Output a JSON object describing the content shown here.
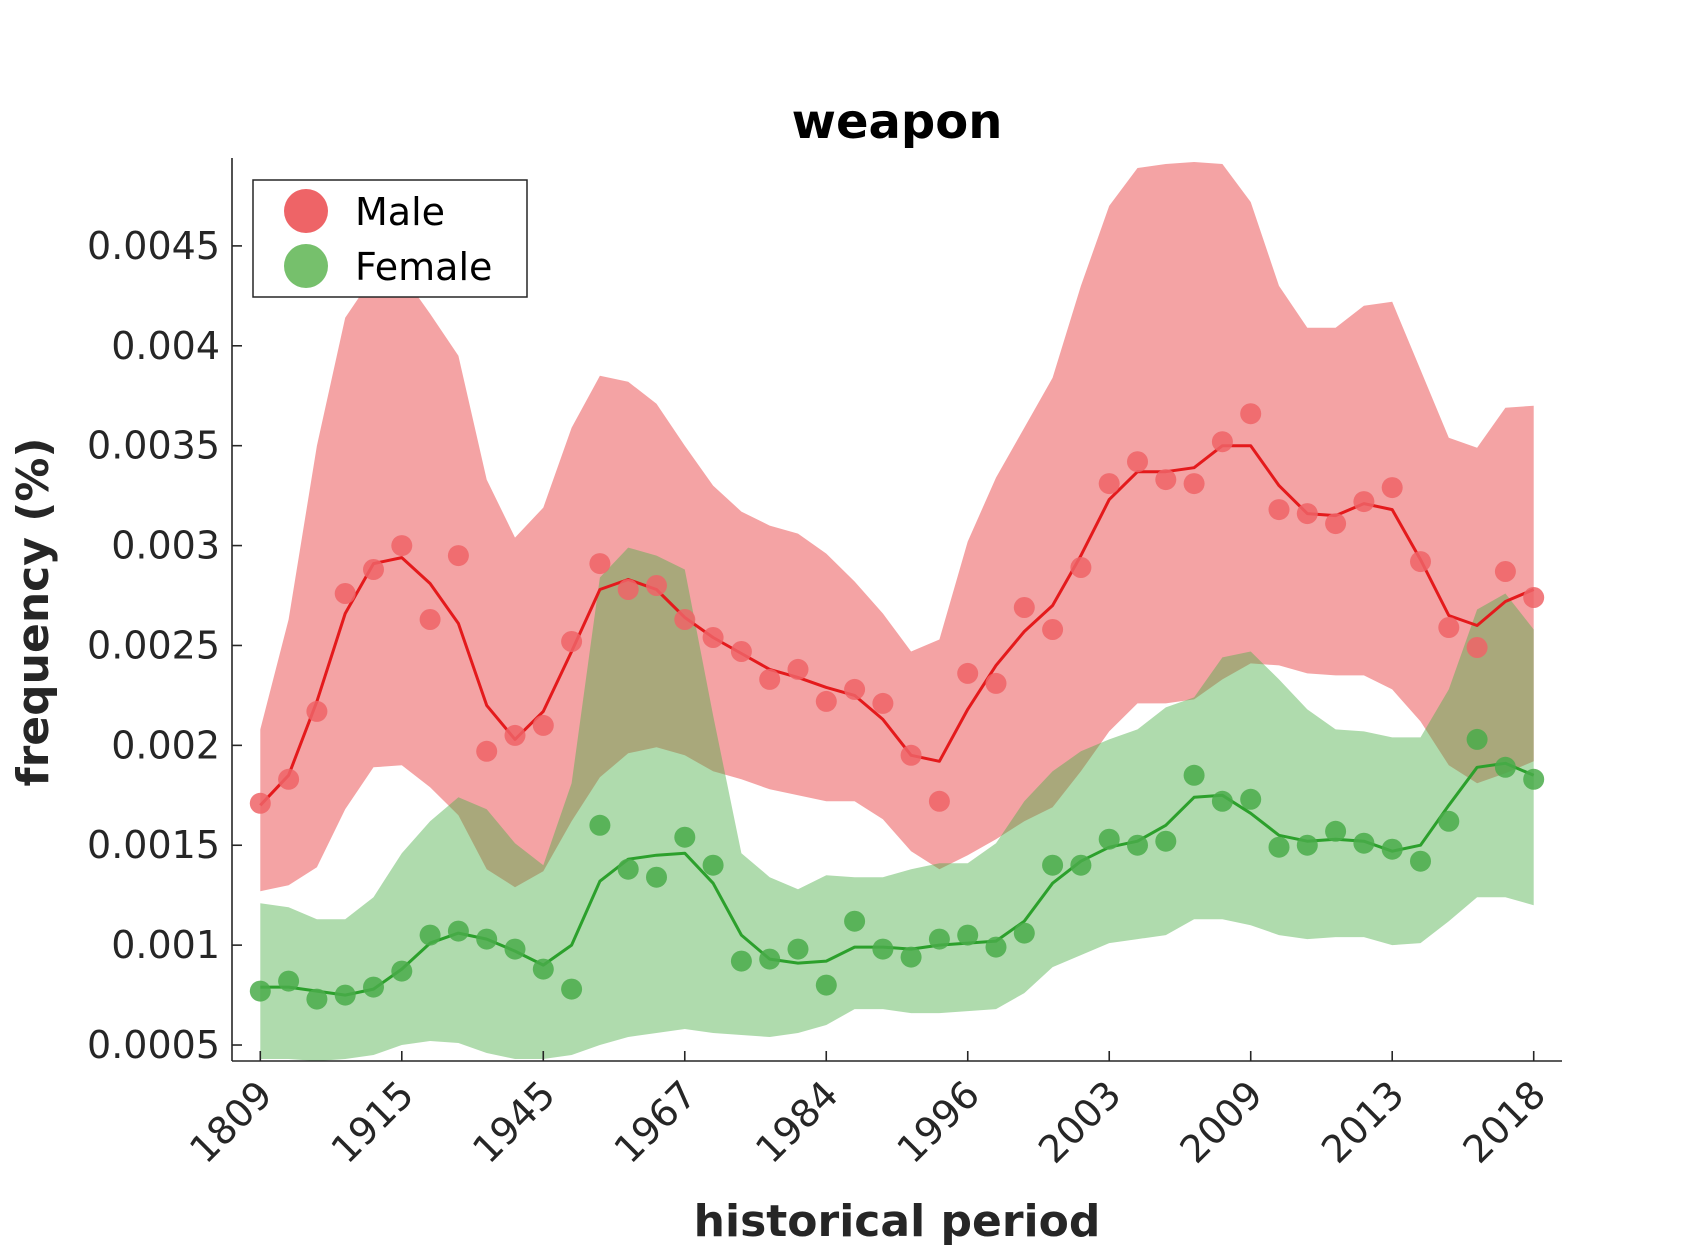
{
  "chart_data": {
    "type": "line",
    "title": "weapon",
    "xlabel": "historical period",
    "ylabel": "frequency (%)",
    "x_tick_labels": [
      "1809",
      "1915",
      "1945",
      "1967",
      "1984",
      "1996",
      "2003",
      "2009",
      "2013",
      "2018"
    ],
    "x_tick_positions": [
      1,
      6,
      11,
      16,
      21,
      26,
      31,
      36,
      41,
      46
    ],
    "x": [
      1,
      2,
      3,
      4,
      5,
      6,
      7,
      8,
      9,
      10,
      11,
      12,
      13,
      14,
      15,
      16,
      17,
      18,
      19,
      20,
      21,
      22,
      23,
      24,
      25,
      26,
      27,
      28,
      29,
      30,
      31,
      32,
      33,
      34,
      35,
      36,
      37,
      38,
      39,
      40,
      41,
      42,
      43,
      44,
      45,
      46
    ],
    "xlim": [
      0,
      47
    ],
    "ylim": [
      0.00042,
      0.00494
    ],
    "y_ticks": [
      0.0005,
      0.001,
      0.0015,
      0.002,
      0.0025,
      0.003,
      0.0035,
      0.004,
      0.0045
    ],
    "y_tick_labels": [
      "0.0005",
      "0.001",
      "0.0015",
      "0.002",
      "0.0025",
      "0.003",
      "0.0035",
      "0.004",
      "0.0045"
    ],
    "legend_position": "top-left",
    "series": [
      {
        "name": "Male",
        "color": "#e41a1c",
        "marker_color": "#ee6467",
        "band_color": "#f4a3a4",
        "points": [
          0.00171,
          0.00183,
          0.00217,
          0.00276,
          0.00288,
          0.003,
          0.00263,
          0.00295,
          0.00197,
          0.00205,
          0.0021,
          0.00252,
          0.00291,
          0.00278,
          0.0028,
          0.00263,
          0.00254,
          0.00247,
          0.00233,
          0.00238,
          0.00222,
          0.00228,
          0.00221,
          0.00195,
          0.00172,
          0.00236,
          0.00231,
          0.00269,
          0.00258,
          0.00289,
          0.00331,
          0.00342,
          0.00333,
          0.00331,
          0.00352,
          0.00366,
          0.00318,
          0.00316,
          0.00311,
          0.00322,
          0.00329,
          0.00292,
          0.00259,
          0.00249,
          0.00287,
          0.00274
        ],
        "smooth": [
          0.0017,
          0.00185,
          0.00222,
          0.00266,
          0.00291,
          0.00294,
          0.00281,
          0.00261,
          0.0022,
          0.00203,
          0.00217,
          0.00247,
          0.00278,
          0.00283,
          0.00278,
          0.00264,
          0.00254,
          0.00246,
          0.00238,
          0.00234,
          0.00229,
          0.00225,
          0.00213,
          0.00195,
          0.00192,
          0.00218,
          0.0024,
          0.00257,
          0.0027,
          0.00295,
          0.00323,
          0.00337,
          0.00337,
          0.00339,
          0.0035,
          0.0035,
          0.0033,
          0.00316,
          0.00315,
          0.00321,
          0.00318,
          0.00293,
          0.00265,
          0.0026,
          0.00272,
          0.00278
        ],
        "band_upper": [
          0.00208,
          0.00263,
          0.0035,
          0.00414,
          0.00435,
          0.00436,
          0.00416,
          0.00395,
          0.00333,
          0.00304,
          0.00319,
          0.00359,
          0.00385,
          0.00382,
          0.00371,
          0.0035,
          0.0033,
          0.00317,
          0.0031,
          0.00306,
          0.00296,
          0.00282,
          0.00266,
          0.00247,
          0.00253,
          0.00302,
          0.00334,
          0.00359,
          0.00384,
          0.0043,
          0.0047,
          0.00489,
          0.00491,
          0.00492,
          0.00491,
          0.00472,
          0.0043,
          0.00409,
          0.00409,
          0.0042,
          0.00422,
          0.00388,
          0.00354,
          0.00349,
          0.00369,
          0.0037
        ],
        "band_lower": [
          0.00127,
          0.0013,
          0.00139,
          0.00168,
          0.00189,
          0.0019,
          0.00179,
          0.00165,
          0.00138,
          0.00129,
          0.00137,
          0.00162,
          0.00184,
          0.00196,
          0.00199,
          0.00195,
          0.00187,
          0.00183,
          0.00178,
          0.00175,
          0.00172,
          0.00172,
          0.00163,
          0.00147,
          0.00138,
          0.00145,
          0.00153,
          0.00162,
          0.00169,
          0.00187,
          0.00207,
          0.00221,
          0.00221,
          0.00223,
          0.00233,
          0.00241,
          0.0024,
          0.00236,
          0.00235,
          0.00235,
          0.00228,
          0.00212,
          0.0019,
          0.00181,
          0.00186,
          0.00192
        ]
      },
      {
        "name": "Female",
        "color": "#2ca02c",
        "marker_color": "#4aab4a",
        "band_color": "#acdaa4",
        "points": [
          0.00077,
          0.00082,
          0.00073,
          0.00075,
          0.00079,
          0.00087,
          0.00105,
          0.00107,
          0.00103,
          0.00098,
          0.00088,
          0.00078,
          0.0016,
          0.00138,
          0.00134,
          0.00154,
          0.0014,
          0.00092,
          0.00093,
          0.00098,
          0.0008,
          0.00112,
          0.00098,
          0.00094,
          0.00103,
          0.00105,
          0.00099,
          0.00106,
          0.0014,
          0.0014,
          0.00153,
          0.0015,
          0.00152,
          0.00185,
          0.00172,
          0.00173,
          0.00149,
          0.0015,
          0.00157,
          0.00151,
          0.00148,
          0.00142,
          0.00162,
          0.00203,
          0.00189,
          0.00183
        ],
        "smooth": [
          0.00079,
          0.00079,
          0.00077,
          0.00075,
          0.00078,
          0.00088,
          0.00101,
          0.00106,
          0.00103,
          0.00097,
          0.0009,
          0.001,
          0.00132,
          0.00143,
          0.00145,
          0.00146,
          0.00131,
          0.00105,
          0.00093,
          0.00091,
          0.00092,
          0.00099,
          0.00099,
          0.00098,
          0.001,
          0.00101,
          0.00102,
          0.00112,
          0.00131,
          0.00142,
          0.00149,
          0.00152,
          0.0016,
          0.00174,
          0.00175,
          0.00166,
          0.00155,
          0.00152,
          0.00153,
          0.00152,
          0.00147,
          0.0015,
          0.0017,
          0.00189,
          0.00191,
          0.00185
        ],
        "band_upper": [
          0.00121,
          0.00119,
          0.00113,
          0.00113,
          0.00124,
          0.00146,
          0.00162,
          0.00174,
          0.00168,
          0.00151,
          0.0014,
          0.00181,
          0.00284,
          0.00299,
          0.00295,
          0.00288,
          0.00215,
          0.00146,
          0.00134,
          0.00128,
          0.00135,
          0.00134,
          0.00134,
          0.00138,
          0.00141,
          0.00141,
          0.00151,
          0.00172,
          0.00187,
          0.00197,
          0.00203,
          0.00208,
          0.00219,
          0.00224,
          0.00244,
          0.00247,
          0.00233,
          0.00218,
          0.00208,
          0.00207,
          0.00204,
          0.00204,
          0.00228,
          0.00268,
          0.00276,
          0.00258
        ],
        "band_lower": [
          0.00043,
          0.00043,
          0.00042,
          0.00043,
          0.00045,
          0.0005,
          0.00052,
          0.00051,
          0.00046,
          0.00043,
          0.00043,
          0.00045,
          0.0005,
          0.00054,
          0.00056,
          0.00058,
          0.00056,
          0.00055,
          0.00054,
          0.00056,
          0.0006,
          0.00068,
          0.00068,
          0.00066,
          0.00066,
          0.00067,
          0.00068,
          0.00076,
          0.00089,
          0.00095,
          0.00101,
          0.00103,
          0.00105,
          0.00113,
          0.00113,
          0.0011,
          0.00105,
          0.00103,
          0.00104,
          0.00104,
          0.001,
          0.00101,
          0.00112,
          0.00124,
          0.00124,
          0.0012
        ]
      }
    ]
  }
}
